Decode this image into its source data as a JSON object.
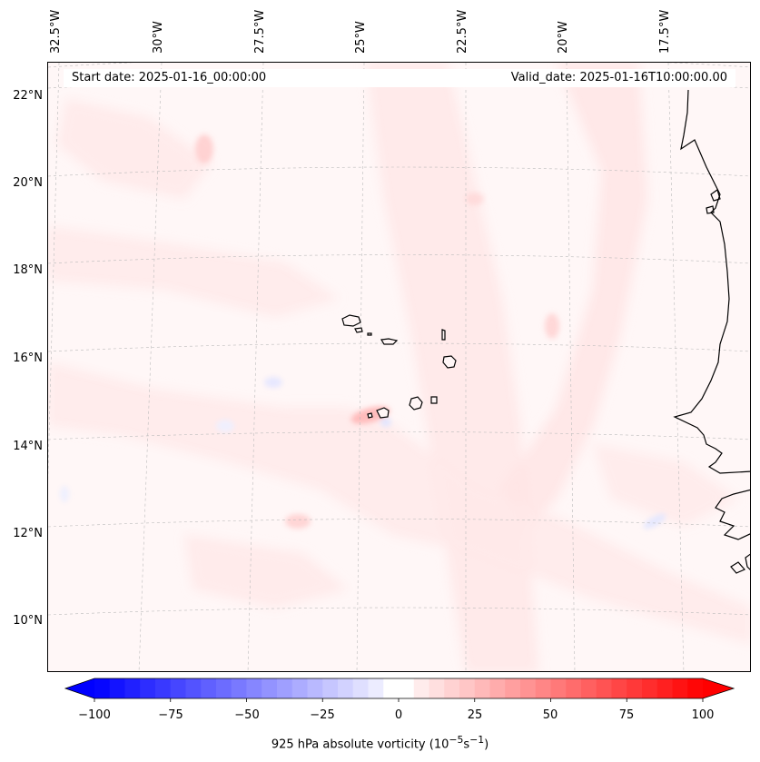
{
  "header": {
    "start_date": "Start date: 2025-01-16_00:00:00",
    "valid_date": "Valid_date: 2025-01-16T10:00:00.00"
  },
  "axes": {
    "longitude_labels": [
      "32.5°W",
      "30°W",
      "27.5°W",
      "25°W",
      "22.5°W",
      "20°W",
      "17.5°W"
    ],
    "latitude_labels": [
      "22°N",
      "20°N",
      "18°N",
      "16°N",
      "14°N",
      "12°N",
      "10°N"
    ]
  },
  "colorbar": {
    "ticks": [
      "−100",
      "−75",
      "−50",
      "−25",
      "0",
      "25",
      "50",
      "75",
      "100"
    ],
    "min": -100,
    "max": 100,
    "label_html": "925 hPa absolute vorticity (10<sup>−5</sup>s<sup>−1</sup>)",
    "negative_color": "#0000ff",
    "positive_color": "#ff0000",
    "extend": "both"
  },
  "colors": {
    "background_field": "#fff7f7",
    "coastline": "#000000",
    "gridline": "#bbbbbb"
  }
}
